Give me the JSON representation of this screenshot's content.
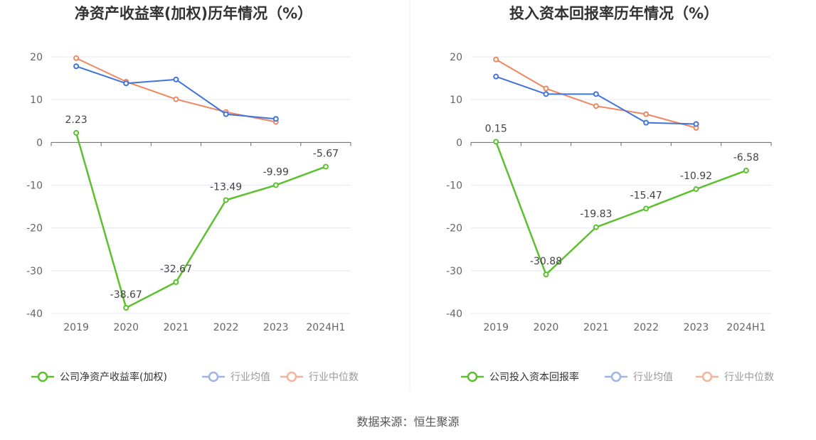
{
  "source_text": "数据来源：恒生聚源",
  "colors": {
    "company": "#5cc12f",
    "avg": "#3f74de",
    "median": "#f08760",
    "avg_legend": "#9fb5ea",
    "median_legend": "#f4b39a",
    "grid": "#e6e8f3",
    "axis": "#666666"
  },
  "chart_data": [
    {
      "type": "line",
      "title": "净资产收益率(加权)历年情况（%）",
      "categories": [
        "2019",
        "2020",
        "2021",
        "2022",
        "2023",
        "2024H1"
      ],
      "yticks": [
        20,
        10,
        0,
        -10,
        -20,
        -30,
        -40
      ],
      "ylim": [
        -40,
        20
      ],
      "grid": true,
      "legend_position": "bottom",
      "series": [
        {
          "key": "company",
          "name": "公司净资产收益率(加权)",
          "values": [
            2.23,
            -38.67,
            -32.67,
            -13.49,
            -9.99,
            -5.67
          ],
          "labels": [
            "2.23",
            "-38.67",
            "-32.67",
            "-13.49",
            "-9.99",
            "-5.67"
          ]
        },
        {
          "key": "avg",
          "name": "行业均值",
          "values": [
            17.8,
            13.8,
            14.7,
            6.6,
            5.5,
            null
          ]
        },
        {
          "key": "median",
          "name": "行业中位数",
          "values": [
            19.7,
            14.2,
            10.1,
            7.1,
            4.8,
            null
          ]
        }
      ]
    },
    {
      "type": "line",
      "title": "投入资本回报率历年情况（%）",
      "categories": [
        "2019",
        "2020",
        "2021",
        "2022",
        "2023",
        "2024H1"
      ],
      "yticks": [
        20,
        10,
        0,
        -10,
        -20,
        -30,
        -40
      ],
      "ylim": [
        -40,
        20
      ],
      "grid": true,
      "legend_position": "bottom",
      "series": [
        {
          "key": "company",
          "name": "公司投入资本回报率",
          "values": [
            0.15,
            -30.88,
            -19.83,
            -15.47,
            -10.92,
            -6.58
          ],
          "labels": [
            "0.15",
            "-30.88",
            "-19.83",
            "-15.47",
            "-10.92",
            "-6.58"
          ]
        },
        {
          "key": "avg",
          "name": "行业均值",
          "values": [
            15.4,
            11.3,
            11.3,
            4.6,
            4.3,
            null
          ]
        },
        {
          "key": "median",
          "name": "行业中位数",
          "values": [
            19.4,
            12.6,
            8.5,
            6.6,
            3.4,
            null
          ]
        }
      ]
    }
  ]
}
